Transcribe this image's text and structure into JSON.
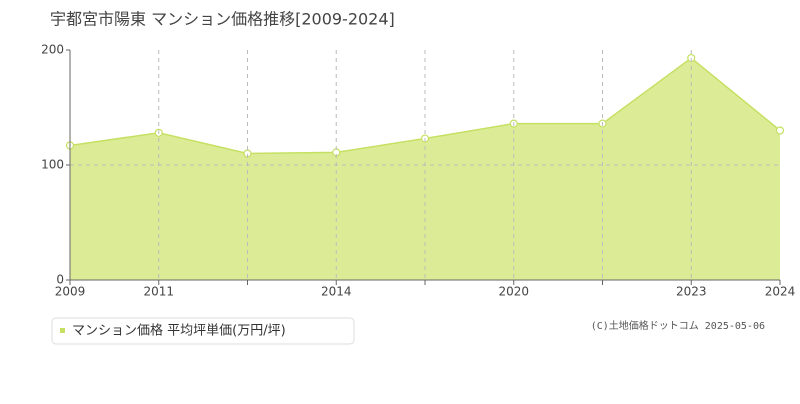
{
  "chart_data": {
    "type": "area",
    "title": "宇都宮市陽東 マンション価格推移[2009-2024]",
    "categories": [
      "2009",
      "2011",
      null,
      "2014",
      null,
      "2020",
      null,
      "2023",
      "2024"
    ],
    "series": [
      {
        "name": "マンション価格 平均坪単価(万円/坪)",
        "color": "#c5e063",
        "fill": "#dcec96",
        "values": [
          117,
          128,
          110,
          111,
          123,
          136,
          136,
          193,
          130
        ]
      }
    ],
    "ylim": [
      0,
      200
    ],
    "yticks": [
      0,
      100,
      200
    ],
    "grid": true,
    "source": "(C)土地価格ドットコム 2025-05-06"
  }
}
